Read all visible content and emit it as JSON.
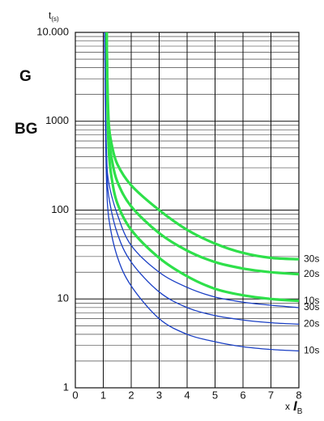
{
  "chart_data": {
    "type": "line",
    "y_label": "t",
    "y_label_sub": "(s)",
    "x_label": "x",
    "x_label_symbol": "I",
    "x_label_sub": "B",
    "annotations": [
      "G",
      "BG"
    ],
    "xlim": [
      0,
      8
    ],
    "xticks": [
      0,
      1,
      2,
      3,
      4,
      5,
      6,
      7,
      8
    ],
    "ylim": [
      1,
      10000
    ],
    "yticks": [
      1,
      10,
      100,
      1000,
      {
        "value": 10000,
        "label": "10.000"
      }
    ],
    "log_y": true,
    "grid": true,
    "minor_grid": true,
    "series": [
      {
        "name": "30s",
        "color": "#2ee04a",
        "x": [
          1.12,
          1.15,
          1.2,
          1.3,
          1.5,
          2,
          3,
          4,
          5,
          6,
          7,
          8
        ],
        "values": [
          10000,
          2500,
          900,
          550,
          330,
          190,
          100,
          60,
          42,
          33,
          29,
          28
        ]
      },
      {
        "name": "20s",
        "color": "#2ee04a",
        "x": [
          1.12,
          1.15,
          1.2,
          1.3,
          1.5,
          2,
          3,
          4,
          5,
          6,
          7,
          8
        ],
        "values": [
          10000,
          2000,
          650,
          380,
          210,
          110,
          55,
          35,
          26,
          22,
          20,
          19
        ]
      },
      {
        "name": "10s",
        "color": "#2ee04a",
        "x": [
          1.12,
          1.15,
          1.2,
          1.3,
          1.5,
          2,
          3,
          4,
          5,
          6,
          7,
          8
        ],
        "values": [
          10000,
          1500,
          450,
          230,
          120,
          60,
          29,
          18,
          13,
          11,
          10,
          9.5
        ]
      },
      {
        "name": "30s",
        "color": "#1a3fc4",
        "x": [
          1.05,
          1.08,
          1.12,
          1.2,
          1.5,
          2,
          3,
          4,
          5,
          6,
          7,
          8
        ],
        "values": [
          10000,
          1500,
          400,
          200,
          90,
          40,
          20,
          13.5,
          10.5,
          9.2,
          8.5,
          8
        ]
      },
      {
        "name": "20s",
        "color": "#1a3fc4",
        "x": [
          1.05,
          1.08,
          1.12,
          1.2,
          1.5,
          2,
          3,
          4,
          5,
          6,
          7,
          8
        ],
        "values": [
          10000,
          1200,
          300,
          140,
          55,
          26,
          12,
          8,
          6.5,
          5.8,
          5.4,
          5.2
        ]
      },
      {
        "name": "10s",
        "color": "#1a3fc4",
        "x": [
          1.05,
          1.08,
          1.12,
          1.2,
          1.5,
          2,
          3,
          4,
          5,
          6,
          7,
          8
        ],
        "values": [
          10000,
          900,
          200,
          80,
          30,
          14,
          6,
          4,
          3.3,
          2.9,
          2.7,
          2.6
        ]
      }
    ]
  }
}
